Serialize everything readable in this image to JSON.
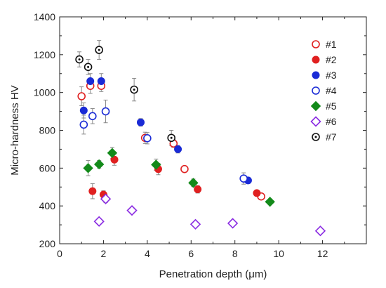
{
  "chart_data": {
    "type": "scatter",
    "xlabel": "Penetration depth (μm)",
    "ylabel": "Micro-hardness HV",
    "xlim": [
      0,
      14
    ],
    "ylim": [
      200,
      1400
    ],
    "xticks": [
      0,
      2,
      4,
      6,
      8,
      10,
      12
    ],
    "yticks": [
      200,
      400,
      600,
      800,
      1000,
      1200,
      1400
    ],
    "grid": false,
    "legend_position": "top-right",
    "series": [
      {
        "name": "#1",
        "marker": "circle-open",
        "color": "#e02020",
        "points": [
          [
            1.0,
            980
          ],
          [
            1.4,
            1035
          ],
          [
            1.9,
            1035
          ],
          [
            3.9,
            760
          ],
          [
            5.2,
            730
          ],
          [
            5.7,
            595
          ],
          [
            9.2,
            450
          ]
        ],
        "errors": [
          50,
          40,
          30,
          30,
          20,
          0,
          0
        ]
      },
      {
        "name": "#2",
        "marker": "circle-filled",
        "color": "#e02020",
        "points": [
          [
            1.5,
            478
          ],
          [
            2.0,
            460
          ],
          [
            2.5,
            645
          ],
          [
            4.5,
            595
          ],
          [
            6.3,
            488
          ],
          [
            9.0,
            468
          ]
        ],
        "errors": [
          40,
          20,
          30,
          30,
          20,
          0
        ]
      },
      {
        "name": "#3",
        "marker": "circle-filled",
        "color": "#1a2bd6",
        "points": [
          [
            1.1,
            905
          ],
          [
            1.4,
            1060
          ],
          [
            1.9,
            1060
          ],
          [
            3.7,
            842
          ],
          [
            5.4,
            700
          ],
          [
            8.6,
            535
          ]
        ],
        "errors": [
          40,
          40,
          40,
          20,
          20,
          0
        ]
      },
      {
        "name": "#4",
        "marker": "circle-open",
        "color": "#1a2bd6",
        "points": [
          [
            1.1,
            830
          ],
          [
            1.5,
            875
          ],
          [
            2.1,
            900
          ],
          [
            4.0,
            758
          ],
          [
            8.4,
            545
          ]
        ],
        "errors": [
          50,
          40,
          60,
          30,
          30
        ]
      },
      {
        "name": "#5",
        "marker": "diamond-filled",
        "color": "#138a1a",
        "points": [
          [
            1.3,
            600
          ],
          [
            1.8,
            620
          ],
          [
            2.4,
            680
          ],
          [
            4.4,
            618
          ],
          [
            6.1,
            522
          ],
          [
            9.6,
            422
          ]
        ],
        "errors": [
          40,
          20,
          30,
          30,
          20,
          0
        ]
      },
      {
        "name": "#6",
        "marker": "diamond-open",
        "color": "#8a2be2",
        "points": [
          [
            1.8,
            318
          ],
          [
            2.1,
            437
          ],
          [
            3.3,
            376
          ],
          [
            6.2,
            303
          ],
          [
            7.9,
            308
          ],
          [
            11.9,
            268
          ]
        ],
        "errors": [
          0,
          20,
          0,
          0,
          0,
          0
        ]
      },
      {
        "name": "#7",
        "marker": "circle-dotted",
        "color": "#111111",
        "points": [
          [
            0.9,
            1175
          ],
          [
            1.3,
            1135
          ],
          [
            1.8,
            1225
          ],
          [
            3.4,
            1015
          ],
          [
            5.1,
            760
          ]
        ],
        "errors": [
          40,
          40,
          50,
          60,
          40
        ]
      }
    ]
  }
}
